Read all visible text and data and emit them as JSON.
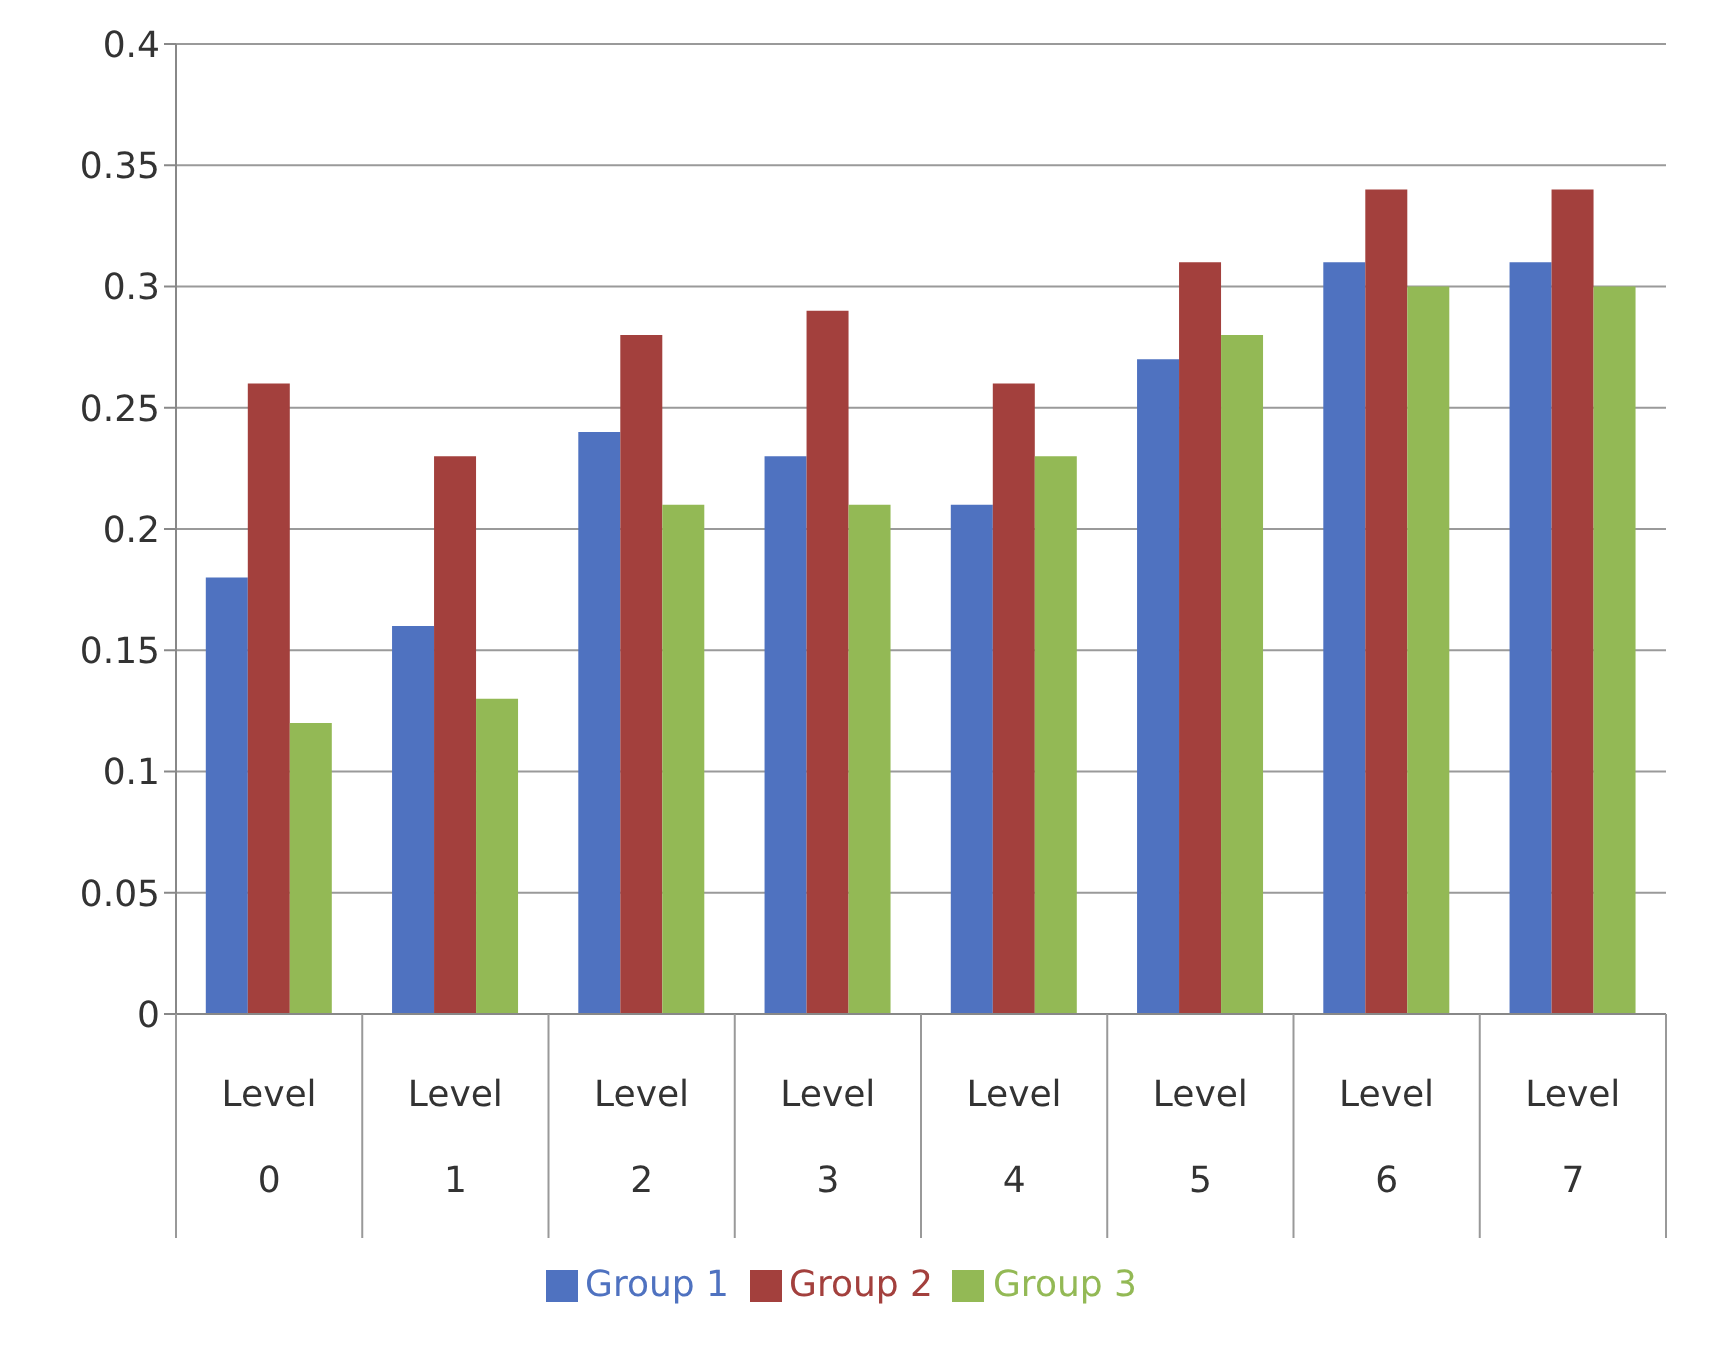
{
  "chart_data": {
    "type": "bar",
    "categories": [
      "Level 0",
      "Level 1",
      "Level 2",
      "Level 3",
      "Level 4",
      "Level 5",
      "Level 6",
      "Level 7"
    ],
    "series": [
      {
        "name": "Group 1",
        "color": "#4f72c0",
        "values": [
          0.18,
          0.16,
          0.24,
          0.23,
          0.21,
          0.27,
          0.31,
          0.31
        ]
      },
      {
        "name": "Group 2",
        "color": "#a3403d",
        "values": [
          0.26,
          0.23,
          0.28,
          0.29,
          0.26,
          0.31,
          0.34,
          0.34
        ]
      },
      {
        "name": "Group 3",
        "color": "#93b955",
        "values": [
          0.12,
          0.13,
          0.21,
          0.21,
          0.23,
          0.28,
          0.3,
          0.3
        ]
      }
    ],
    "ylim": [
      0,
      0.4
    ],
    "yticks": [
      0,
      0.05,
      0.1,
      0.15,
      0.2,
      0.25,
      0.3,
      0.35,
      0.4
    ],
    "grid": "y",
    "legend": "bottom"
  }
}
